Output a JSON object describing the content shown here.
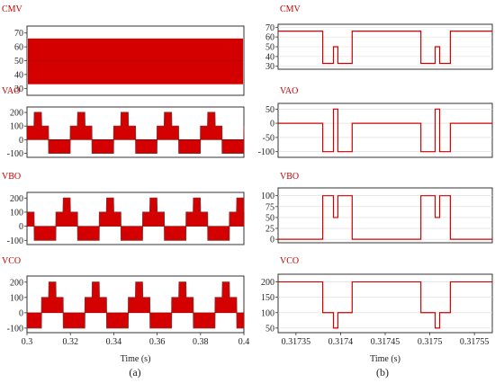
{
  "chart_data": [
    {
      "type": "line",
      "panel": "a",
      "caption": "(a)",
      "xlabel": "Time (s)",
      "xlim": [
        0.3,
        0.4
      ],
      "xticks": [
        "0.3",
        "0.32",
        "0.34",
        "0.36",
        "0.38",
        "0.4"
      ],
      "subplots": [
        {
          "title": "CMV",
          "ylim": [
            25,
            75
          ],
          "yticks": [
            30,
            40,
            50,
            60,
            70
          ],
          "style": "band",
          "band": [
            33,
            66
          ]
        },
        {
          "title": "VAO",
          "ylim": [
            -130,
            240
          ],
          "yticks": [
            -100,
            0,
            100,
            200
          ],
          "style": "stepped",
          "phase_shift": 0,
          "peak": 200
        },
        {
          "title": "VBO",
          "ylim": [
            -130,
            240
          ],
          "yticks": [
            -100,
            0,
            100,
            200
          ],
          "style": "stepped",
          "phase_shift": -0.00667,
          "peak": 200
        },
        {
          "title": "VCO",
          "ylim": [
            -130,
            240
          ],
          "yticks": [
            -100,
            0,
            100,
            200
          ],
          "style": "stepped",
          "phase_shift": -0.01333,
          "peak": 200
        }
      ]
    },
    {
      "type": "line",
      "panel": "b",
      "caption": "(b)",
      "xlabel": "Time (s)",
      "xlim": [
        0.31733,
        0.31757
      ],
      "xticks": [
        "0.31735",
        "0.3174",
        "0.31745",
        "0.3175",
        "0.31755"
      ],
      "subplots": [
        {
          "title": "CMV",
          "ylim": [
            27,
            73
          ],
          "yticks": [
            30,
            40,
            50,
            60,
            70
          ],
          "series": {
            "x": [
              0.31733,
              0.31738,
              0.31738,
              0.317392,
              0.317392,
              0.317397,
              0.317397,
              0.317413,
              0.317413,
              0.31749,
              0.31749,
              0.317506,
              0.317506,
              0.317511,
              0.317511,
              0.317523,
              0.317523,
              0.31757
            ],
            "y": [
              66,
              66,
              33,
              33,
              50,
              50,
              33,
              33,
              66,
              66,
              33,
              33,
              50,
              50,
              33,
              33,
              66,
              66
            ]
          }
        },
        {
          "title": "VAO",
          "ylim": [
            -120,
            70
          ],
          "yticks": [
            -100,
            -50,
            0,
            50
          ],
          "series": {
            "x": [
              0.31733,
              0.31738,
              0.31738,
              0.317392,
              0.317392,
              0.317397,
              0.317397,
              0.317413,
              0.317413,
              0.31749,
              0.31749,
              0.317506,
              0.317506,
              0.317511,
              0.317511,
              0.317523,
              0.317523,
              0.31757
            ],
            "y": [
              0,
              0,
              -100,
              -100,
              50,
              50,
              -100,
              -100,
              0,
              0,
              -100,
              -100,
              50,
              50,
              -100,
              -100,
              0,
              0
            ]
          }
        },
        {
          "title": "VBO",
          "ylim": [
            -8,
            118
          ],
          "yticks": [
            0,
            25,
            50,
            75,
            100
          ],
          "series": {
            "x": [
              0.31733,
              0.31738,
              0.31738,
              0.317392,
              0.317392,
              0.317397,
              0.317397,
              0.317413,
              0.317413,
              0.31749,
              0.31749,
              0.317506,
              0.317506,
              0.317511,
              0.317511,
              0.317523,
              0.317523,
              0.31757
            ],
            "y": [
              0,
              0,
              100,
              100,
              50,
              50,
              100,
              100,
              0,
              0,
              100,
              100,
              50,
              50,
              100,
              100,
              0,
              0
            ]
          }
        },
        {
          "title": "VCO",
          "ylim": [
            35,
            225
          ],
          "yticks": [
            50,
            100,
            150,
            200
          ],
          "series": {
            "x": [
              0.31733,
              0.31738,
              0.31738,
              0.317392,
              0.317392,
              0.317397,
              0.317397,
              0.317413,
              0.317413,
              0.31749,
              0.31749,
              0.317506,
              0.317506,
              0.317511,
              0.317511,
              0.317523,
              0.317523,
              0.31757
            ],
            "y": [
              200,
              200,
              100,
              100,
              50,
              50,
              100,
              100,
              200,
              200,
              100,
              100,
              50,
              50,
              100,
              100,
              200,
              200
            ]
          }
        }
      ]
    }
  ],
  "colors": {
    "trace": "#d40000",
    "frame": "#333333",
    "grid": "#d9d9d9",
    "title": "#c00000"
  }
}
